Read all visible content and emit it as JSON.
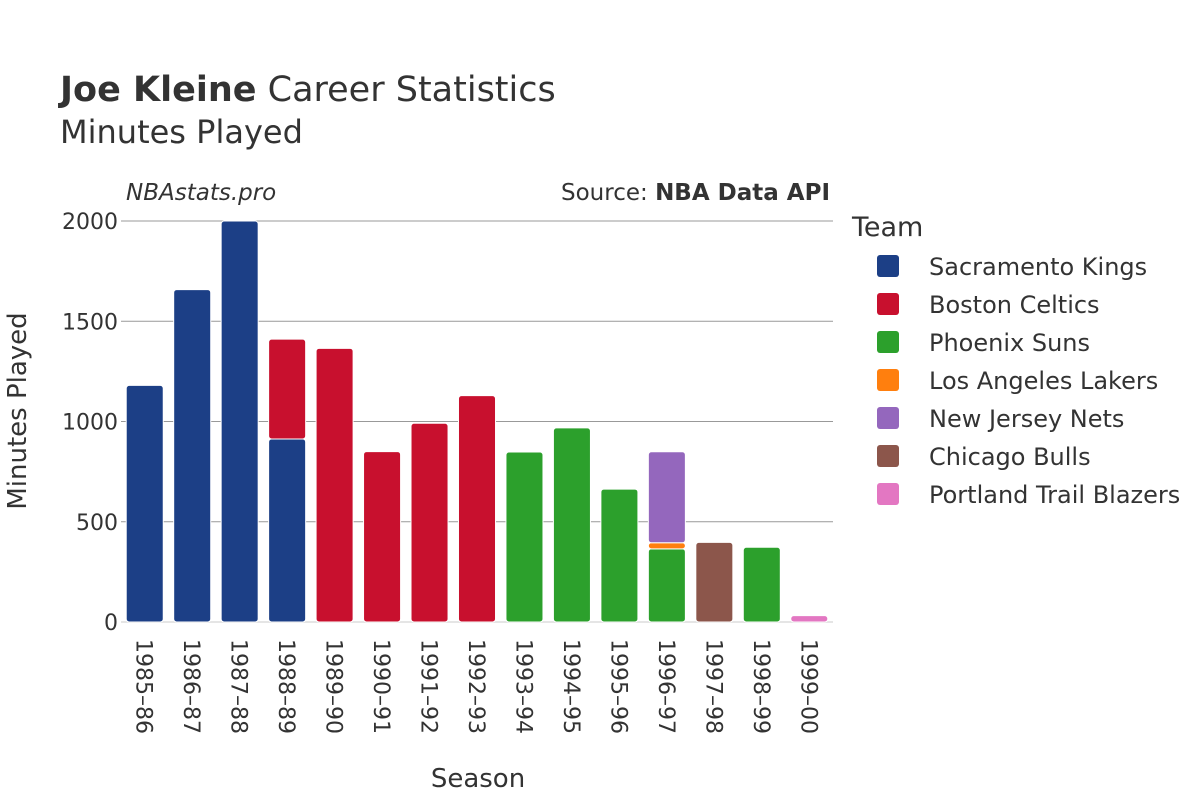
{
  "header": {
    "title_bold": "Joe Kleine",
    "title_rest": "Career Statistics",
    "subtitle": "Minutes Played"
  },
  "brand": "NBAstats.pro",
  "source": {
    "prefix": "Source: ",
    "name": "NBA Data API"
  },
  "legend": {
    "title": "Team"
  },
  "colors": {
    "Sacramento Kings": "#1c3f86",
    "Boston Celtics": "#c8102e",
    "Phoenix Suns": "#2ca02c",
    "Los Angeles Lakers": "#ff7f0e",
    "New Jersey Nets": "#9467bd",
    "Chicago Bulls": "#8c564b",
    "Portland Trail Blazers": "#e377c2"
  },
  "chart_data": {
    "type": "bar",
    "stacked": true,
    "xlabel": "Season",
    "ylabel": "Minutes Played",
    "ylim": [
      0,
      2000
    ],
    "yticks": [
      0,
      500,
      1000,
      1500,
      2000
    ],
    "grid": true,
    "legend_position": "right",
    "categories": [
      "1985–86",
      "1986–87",
      "1987–88",
      "1988–89",
      "1989–90",
      "1990–91",
      "1991–92",
      "1992–93",
      "1993–94",
      "1994–95",
      "1995–96",
      "1996–97",
      "1997–98",
      "1998–99",
      "1999–00"
    ],
    "series": [
      {
        "name": "Sacramento Kings",
        "values": [
          1180,
          1658,
          2000,
          913,
          0,
          0,
          0,
          0,
          0,
          0,
          0,
          0,
          0,
          0,
          0
        ]
      },
      {
        "name": "Boston Celtics",
        "values": [
          0,
          0,
          0,
          498,
          1365,
          850,
          991,
          1129,
          0,
          0,
          0,
          0,
          0,
          0,
          0
        ]
      },
      {
        "name": "Phoenix Suns",
        "values": [
          0,
          0,
          0,
          0,
          0,
          0,
          0,
          0,
          848,
          968,
          663,
          365,
          0,
          373,
          0
        ]
      },
      {
        "name": "Los Angeles Lakers",
        "values": [
          0,
          0,
          0,
          0,
          0,
          0,
          0,
          0,
          0,
          0,
          0,
          30,
          0,
          0,
          0
        ]
      },
      {
        "name": "New Jersey Nets",
        "values": [
          0,
          0,
          0,
          0,
          0,
          0,
          0,
          0,
          0,
          0,
          0,
          454,
          0,
          0,
          0
        ]
      },
      {
        "name": "Chicago Bulls",
        "values": [
          0,
          0,
          0,
          0,
          0,
          0,
          0,
          0,
          0,
          0,
          0,
          0,
          397,
          0,
          0
        ]
      },
      {
        "name": "Portland Trail Blazers",
        "values": [
          0,
          0,
          0,
          0,
          0,
          0,
          0,
          0,
          0,
          0,
          0,
          0,
          0,
          0,
          32
        ]
      }
    ]
  }
}
